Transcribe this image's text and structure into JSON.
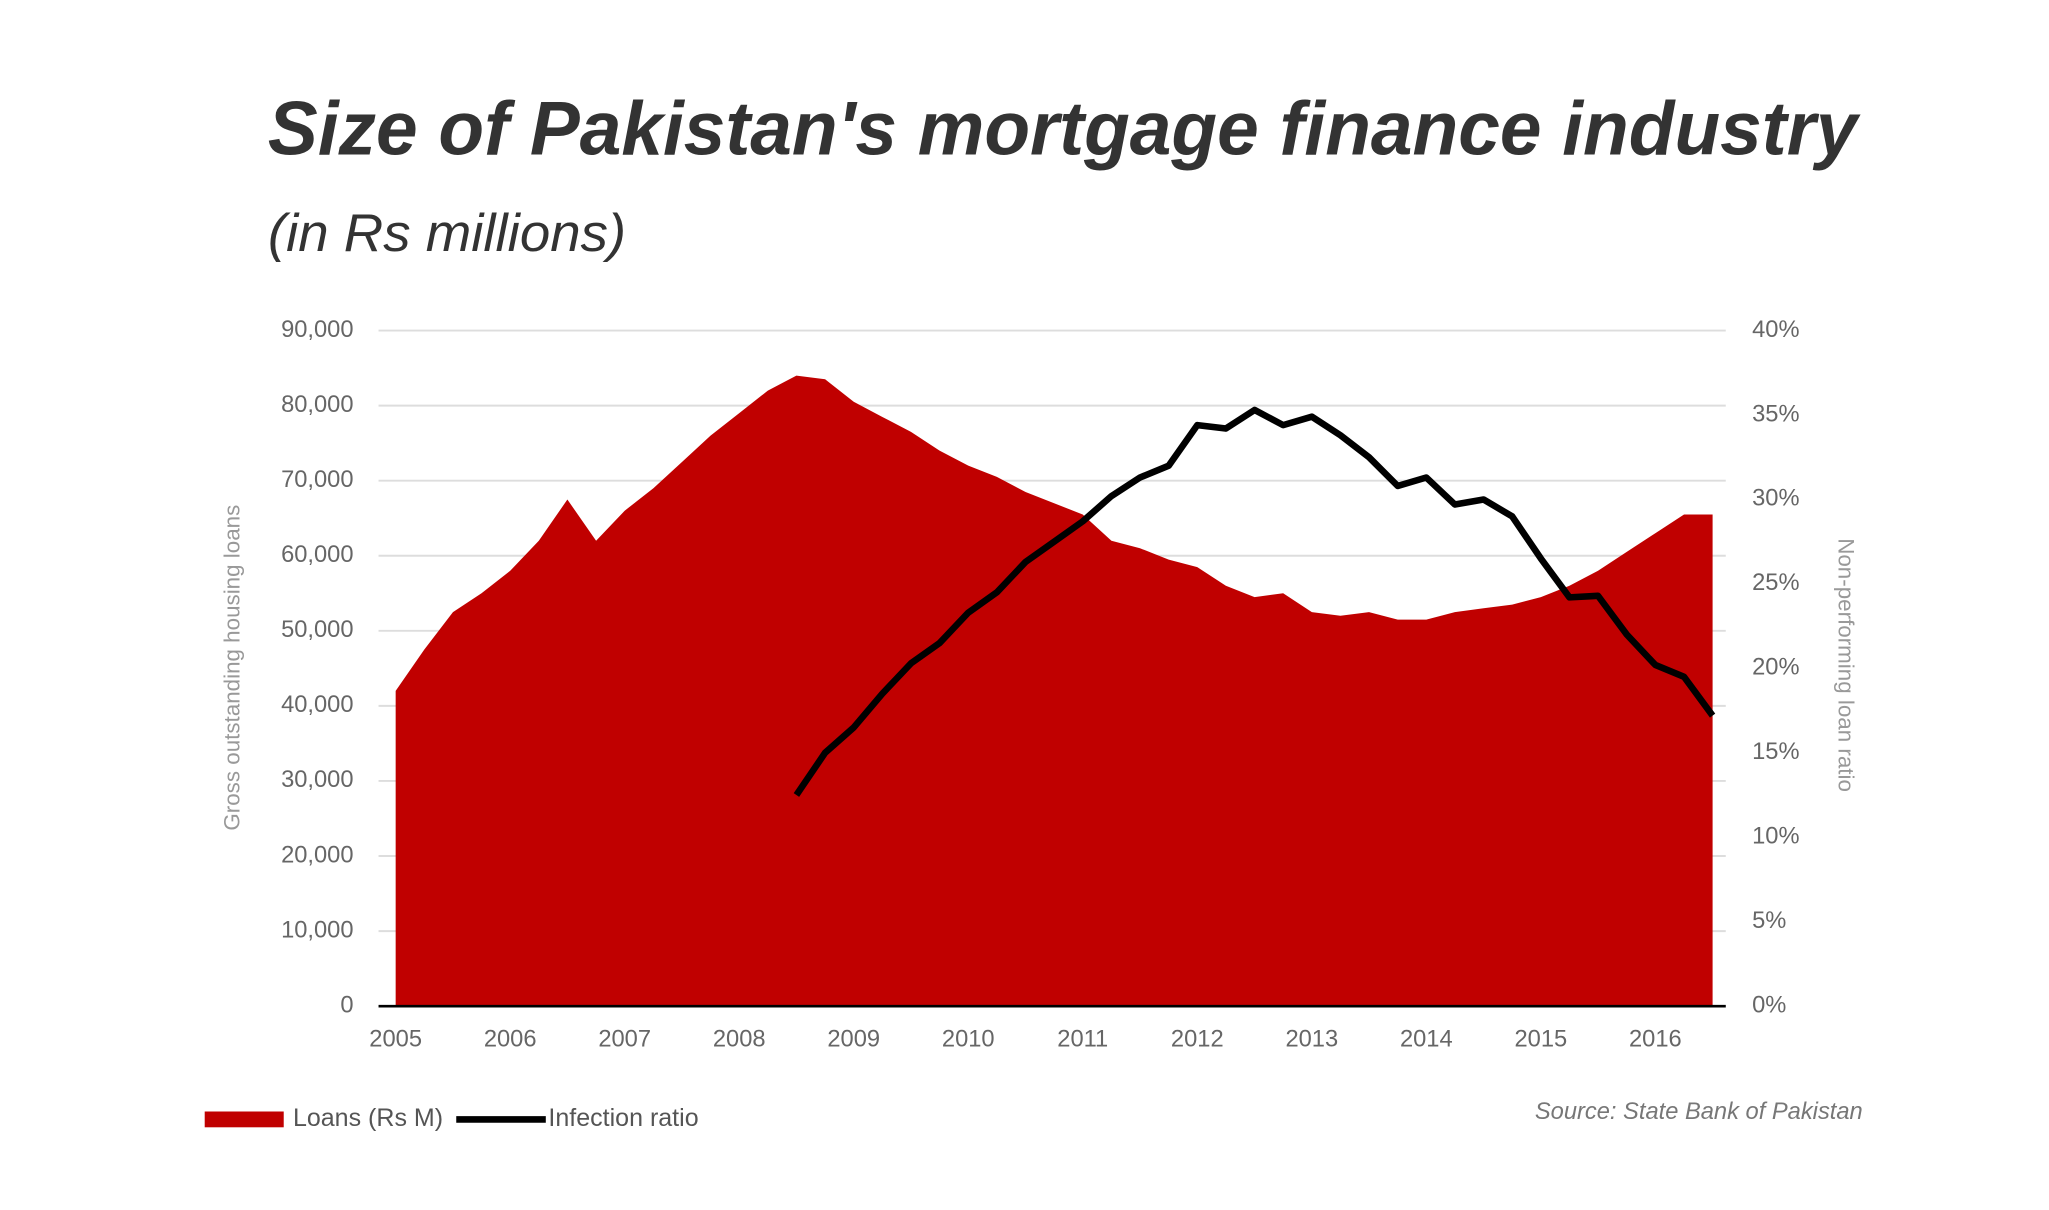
{
  "chart_data": {
    "type": "area_line",
    "title": "Size of Pakistan's mortgage finance industry",
    "subtitle": "(in Rs millions)",
    "y_label": "Gross outstanding housing loans",
    "y2_label": "Non-performing loan ratio",
    "source": "Source: State Bank of Pakistan",
    "x": [
      2005,
      2005.25,
      2005.5,
      2005.75,
      2006,
      2006.25,
      2006.5,
      2006.75,
      2007,
      2007.25,
      2007.5,
      2007.75,
      2008,
      2008.25,
      2008.5,
      2008.75,
      2009,
      2009.25,
      2009.5,
      2009.75,
      2010,
      2010.25,
      2010.5,
      2010.75,
      2011,
      2011.25,
      2011.5,
      2011.75,
      2012,
      2012.25,
      2012.5,
      2012.75,
      2013,
      2013.25,
      2013.5,
      2013.75,
      2014,
      2014.25,
      2014.5,
      2014.75,
      2015,
      2015.25,
      2015.5,
      2015.75,
      2016,
      2016.25,
      2016.5
    ],
    "series": [
      {
        "name": "Loans (Rs M)",
        "color": "#c00000",
        "kind": "area",
        "values": [
          42000,
          47500,
          52500,
          55000,
          58000,
          62000,
          67500,
          62000,
          66000,
          69000,
          72500,
          76000,
          79000,
          82000,
          84000,
          83500,
          80500,
          78500,
          76500,
          74000,
          72000,
          70500,
          68500,
          67000,
          65500,
          62000,
          61000,
          59500,
          58500,
          56000,
          54500,
          55000,
          52500,
          52000,
          52500,
          51500,
          51500,
          52500,
          53000,
          53500,
          54500,
          56000,
          58000,
          60500,
          63000,
          65500,
          65500
        ]
      },
      {
        "name": "Infection ratio",
        "color": "#000000",
        "kind": "line",
        "axis": "y2",
        "values": [
          null,
          null,
          null,
          null,
          null,
          null,
          null,
          null,
          null,
          null,
          null,
          null,
          null,
          null,
          12.5,
          15,
          16.5,
          18.5,
          20.3,
          21.5,
          23.3,
          24.5,
          26.3,
          27.5,
          28.7,
          30.2,
          31.3,
          32,
          34.4,
          34.2,
          35.3,
          34.4,
          34.9,
          33.8,
          32.5,
          30.8,
          31.3,
          29.7,
          30,
          29,
          26.5,
          24.2,
          24.3,
          22,
          20.2,
          19.5,
          17.2
        ]
      }
    ],
    "xlim": [
      2004.85,
      2016.5
    ],
    "xticks": [
      2005,
      2006,
      2007,
      2008,
      2009,
      2010,
      2011,
      2012,
      2013,
      2014,
      2015,
      2016
    ],
    "ylim": [
      0,
      90000
    ],
    "yticks": [
      0,
      {
        "value": 10000,
        "label": "10,000"
      },
      {
        "value": 20000,
        "label": "20,000"
      },
      {
        "value": 30000,
        "label": "30,000"
      },
      {
        "value": 40000,
        "label": "40,000"
      },
      {
        "value": 50000,
        "label": "50,000"
      },
      {
        "value": 60000,
        "label": "60,000"
      },
      {
        "value": 70000,
        "label": "70,000"
      },
      {
        "value": 80000,
        "label": "80,000"
      },
      {
        "value": 90000,
        "label": "90,000"
      }
    ],
    "y2lim": [
      0,
      40
    ],
    "y2ticks": [
      {
        "value": 0,
        "label": "0%"
      },
      {
        "value": 5,
        "label": "5%"
      },
      {
        "value": 10,
        "label": "10%"
      },
      {
        "value": 15,
        "label": "15%"
      },
      {
        "value": 20,
        "label": "20%"
      },
      {
        "value": 25,
        "label": "25%"
      },
      {
        "value": 30,
        "label": "30%"
      },
      {
        "value": 35,
        "label": "35%"
      },
      {
        "value": 40,
        "label": "40%"
      }
    ],
    "grid": true,
    "legend": "bottom-left"
  }
}
